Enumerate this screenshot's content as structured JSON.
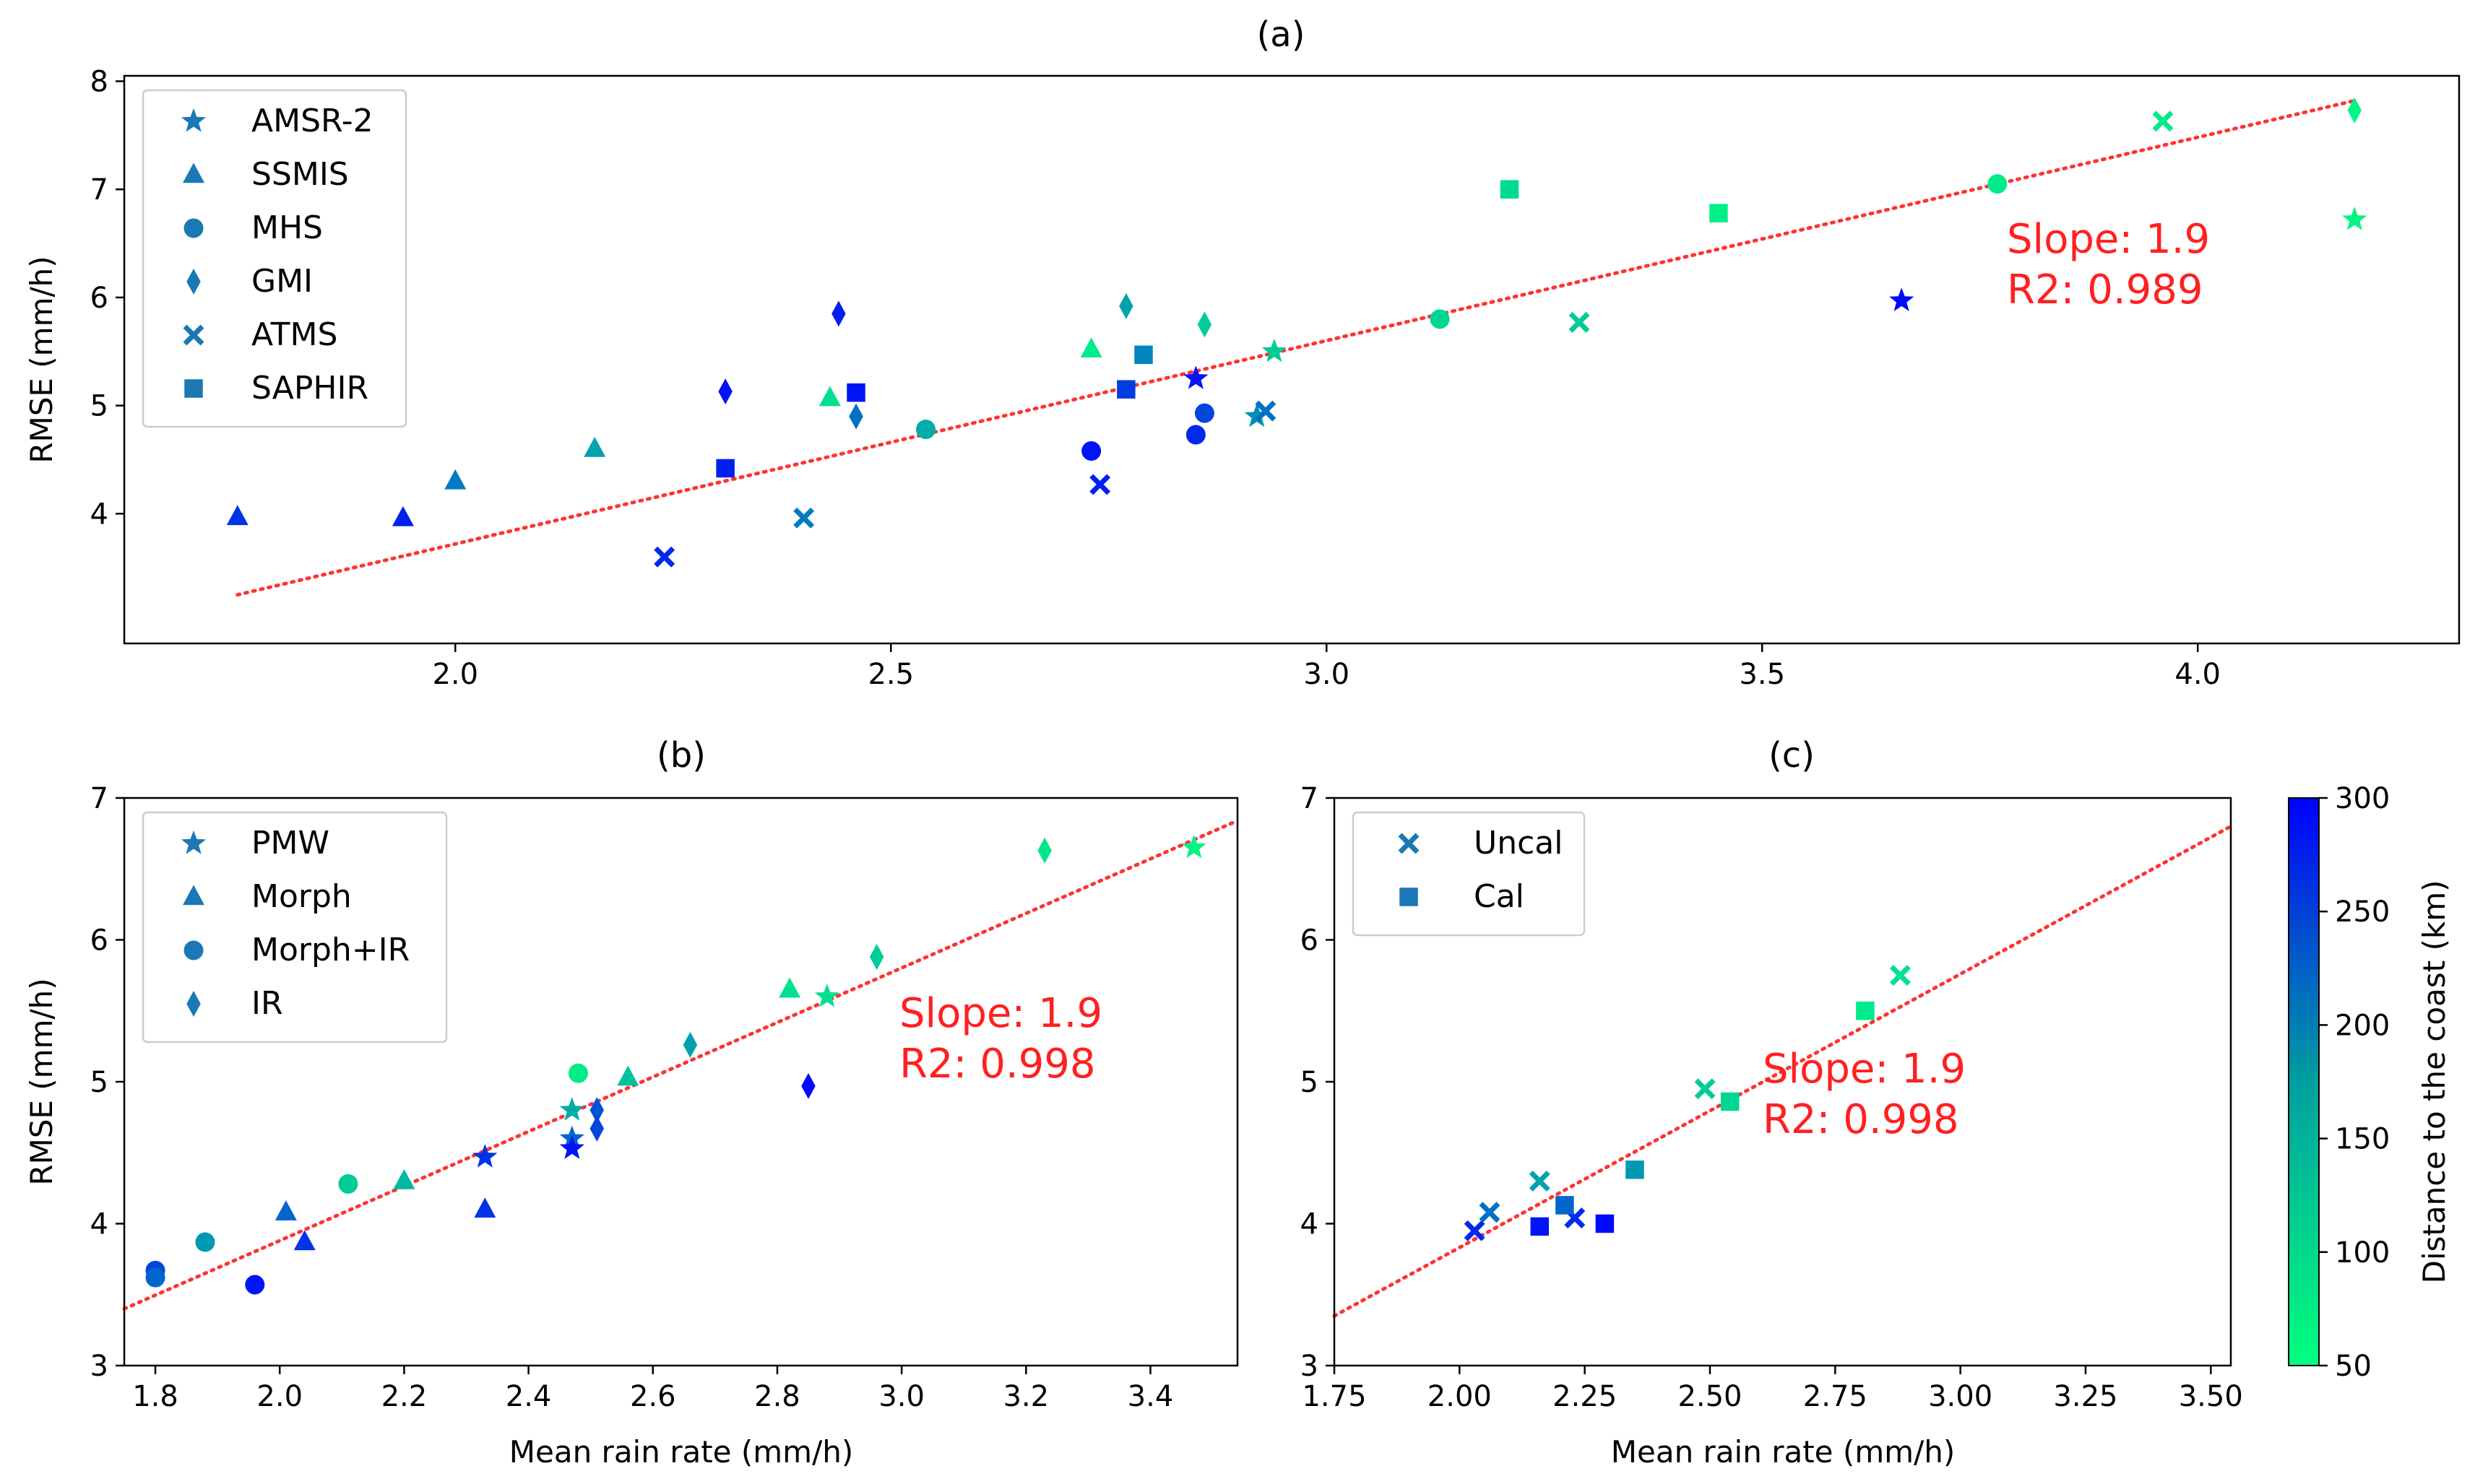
{
  "colors": {
    "fit_line": "#ff3333",
    "annotation": "#ff2020",
    "legend_marker": "#1a78b4",
    "cmap_low": "#00ff7f",
    "cmap_high": "#0000ff"
  },
  "colorbar": {
    "label": "Distance to the coast (km)",
    "min": 50,
    "max": 300,
    "ticks": [
      50,
      100,
      150,
      200,
      250,
      300
    ]
  },
  "chart_data": [
    {
      "id": "a",
      "type": "scatter",
      "title": "(a)",
      "xlabel": "",
      "ylabel": "RMSE (mm/h)",
      "xlim": [
        1.62,
        4.3
      ],
      "ylim": [
        2.8,
        8.05
      ],
      "xticks": [
        2.0,
        2.5,
        3.0,
        3.5,
        4.0
      ],
      "xtick_labels": [
        "2.0",
        "2.5",
        "3.0",
        "3.5",
        "4.0"
      ],
      "yticks": [
        4,
        5,
        6,
        7,
        8
      ],
      "ytick_labels": [
        "4",
        "5",
        "6",
        "7",
        "8"
      ],
      "fit": {
        "x0": 1.75,
        "x1": 4.18,
        "y0": 3.25,
        "y1": 7.82,
        "slope_text": "Slope: 1.9",
        "r2_text": "R2: 0.989",
        "text_x": 3.78,
        "text_y": 6.2
      },
      "legend": [
        "AMSR-2",
        "SSMIS",
        "MHS",
        "GMI",
        "ATMS",
        "SAPHIR"
      ],
      "legend_markers": [
        "star",
        "triangle",
        "circle",
        "diamond",
        "x",
        "square"
      ],
      "series": [
        {
          "name": "AMSR-2",
          "marker": "star",
          "points": [
            {
              "x": 2.85,
              "y": 5.25,
              "d": 280
            },
            {
              "x": 2.92,
              "y": 4.9,
              "d": 160
            },
            {
              "x": 2.94,
              "y": 5.5,
              "d": 100
            },
            {
              "x": 3.66,
              "y": 5.97,
              "d": 290
            },
            {
              "x": 4.18,
              "y": 6.72,
              "d": 60
            }
          ]
        },
        {
          "name": "SSMIS",
          "marker": "triangle",
          "points": [
            {
              "x": 1.75,
              "y": 3.97,
              "d": 250
            },
            {
              "x": 1.94,
              "y": 3.96,
              "d": 270
            },
            {
              "x": 2.0,
              "y": 4.3,
              "d": 180
            },
            {
              "x": 2.16,
              "y": 4.6,
              "d": 140
            },
            {
              "x": 2.43,
              "y": 5.07,
              "d": 80
            },
            {
              "x": 2.73,
              "y": 5.52,
              "d": 70
            }
          ]
        },
        {
          "name": "MHS",
          "marker": "circle",
          "points": [
            {
              "x": 2.54,
              "y": 4.78,
              "d": 130
            },
            {
              "x": 2.73,
              "y": 4.58,
              "d": 280
            },
            {
              "x": 2.85,
              "y": 4.73,
              "d": 260
            },
            {
              "x": 2.86,
              "y": 4.93,
              "d": 230
            },
            {
              "x": 3.13,
              "y": 5.8,
              "d": 90
            },
            {
              "x": 3.77,
              "y": 7.05,
              "d": 70
            }
          ]
        },
        {
          "name": "GMI",
          "marker": "diamond",
          "points": [
            {
              "x": 2.31,
              "y": 5.13,
              "d": 280
            },
            {
              "x": 2.44,
              "y": 5.85,
              "d": 270
            },
            {
              "x": 2.46,
              "y": 4.9,
              "d": 190
            },
            {
              "x": 2.77,
              "y": 5.92,
              "d": 140
            },
            {
              "x": 2.86,
              "y": 5.75,
              "d": 100
            },
            {
              "x": 4.18,
              "y": 7.73,
              "d": 60
            }
          ]
        },
        {
          "name": "ATMS",
          "marker": "x",
          "points": [
            {
              "x": 2.24,
              "y": 3.6,
              "d": 260
            },
            {
              "x": 2.4,
              "y": 3.96,
              "d": 180
            },
            {
              "x": 2.74,
              "y": 4.27,
              "d": 270
            },
            {
              "x": 2.93,
              "y": 4.95,
              "d": 190
            },
            {
              "x": 3.29,
              "y": 5.77,
              "d": 100
            },
            {
              "x": 3.96,
              "y": 7.63,
              "d": 70
            }
          ]
        },
        {
          "name": "SAPHIR",
          "marker": "square",
          "points": [
            {
              "x": 2.31,
              "y": 4.42,
              "d": 270
            },
            {
              "x": 2.46,
              "y": 5.12,
              "d": 280
            },
            {
              "x": 2.77,
              "y": 5.15,
              "d": 240
            },
            {
              "x": 2.79,
              "y": 5.47,
              "d": 170
            },
            {
              "x": 3.21,
              "y": 7.0,
              "d": 85
            },
            {
              "x": 3.45,
              "y": 6.78,
              "d": 65
            }
          ]
        }
      ]
    },
    {
      "id": "b",
      "type": "scatter",
      "title": "(b)",
      "xlabel": "Mean rain rate (mm/h)",
      "ylabel": "RMSE (mm/h)",
      "xlim": [
        1.75,
        3.54
      ],
      "ylim": [
        3.0,
        7.0
      ],
      "xticks": [
        1.8,
        2.0,
        2.2,
        2.4,
        2.6,
        2.8,
        3.0,
        3.2,
        3.4
      ],
      "xtick_labels": [
        "1.8",
        "2.0",
        "2.2",
        "2.4",
        "2.6",
        "2.8",
        "3.0",
        "3.2",
        "3.4"
      ],
      "yticks": [
        3,
        4,
        5,
        6,
        7
      ],
      "ytick_labels": [
        "3",
        "4",
        "5",
        "6",
        "7"
      ],
      "fit": {
        "x0": 1.75,
        "x1": 3.54,
        "y0": 3.4,
        "y1": 6.84,
        "slope_text": "Slope: 1.9",
        "r2_text": "R2: 0.998",
        "text_x": 3.0,
        "text_y": 5.55
      },
      "legend": [
        "PMW",
        "Morph",
        "Morph+IR",
        "IR"
      ],
      "legend_markers": [
        "star",
        "triangle",
        "circle",
        "diamond"
      ],
      "series": [
        {
          "name": "PMW",
          "marker": "star",
          "points": [
            {
              "x": 2.33,
              "y": 4.47,
              "d": 250
            },
            {
              "x": 2.47,
              "y": 4.8,
              "d": 130
            },
            {
              "x": 2.47,
              "y": 4.6,
              "d": 200
            },
            {
              "x": 2.47,
              "y": 4.53,
              "d": 280
            },
            {
              "x": 2.88,
              "y": 5.6,
              "d": 80
            },
            {
              "x": 3.47,
              "y": 6.65,
              "d": 60
            }
          ]
        },
        {
          "name": "Morph",
          "marker": "triangle",
          "points": [
            {
              "x": 2.01,
              "y": 4.08,
              "d": 200
            },
            {
              "x": 2.04,
              "y": 3.87,
              "d": 250
            },
            {
              "x": 2.2,
              "y": 4.3,
              "d": 120
            },
            {
              "x": 2.33,
              "y": 4.1,
              "d": 250
            },
            {
              "x": 2.56,
              "y": 5.03,
              "d": 110
            },
            {
              "x": 2.82,
              "y": 5.65,
              "d": 80
            }
          ]
        },
        {
          "name": "Morph+IR",
          "marker": "circle",
          "points": [
            {
              "x": 1.8,
              "y": 3.67,
              "d": 230
            },
            {
              "x": 1.8,
              "y": 3.62,
              "d": 200
            },
            {
              "x": 1.88,
              "y": 3.87,
              "d": 150
            },
            {
              "x": 1.96,
              "y": 3.57,
              "d": 280
            },
            {
              "x": 2.11,
              "y": 4.28,
              "d": 100
            },
            {
              "x": 2.48,
              "y": 5.06,
              "d": 70
            }
          ]
        },
        {
          "name": "IR",
          "marker": "diamond",
          "points": [
            {
              "x": 2.51,
              "y": 4.8,
              "d": 220
            },
            {
              "x": 2.51,
              "y": 4.67,
              "d": 230
            },
            {
              "x": 2.66,
              "y": 5.26,
              "d": 140
            },
            {
              "x": 2.85,
              "y": 4.97,
              "d": 290
            },
            {
              "x": 2.96,
              "y": 5.88,
              "d": 100
            },
            {
              "x": 3.23,
              "y": 6.63,
              "d": 75
            }
          ]
        }
      ]
    },
    {
      "id": "c",
      "type": "scatter",
      "title": "(c)",
      "xlabel": "Mean rain rate (mm/h)",
      "ylabel": "",
      "xlim": [
        1.75,
        3.54
      ],
      "ylim": [
        3.0,
        7.0
      ],
      "xticks": [
        1.75,
        2.0,
        2.25,
        2.5,
        2.75,
        3.0,
        3.25,
        3.5
      ],
      "xtick_labels": [
        "1.75",
        "2.00",
        "2.25",
        "2.50",
        "2.75",
        "3.00",
        "3.25",
        "3.50"
      ],
      "yticks": [
        3,
        4,
        5,
        6,
        7
      ],
      "ytick_labels": [
        "3",
        "4",
        "5",
        "6",
        "7"
      ],
      "fit": {
        "x0": 1.75,
        "x1": 3.54,
        "y0": 3.35,
        "y1": 6.8,
        "slope_text": "Slope: 1.9",
        "r2_text": "R2: 0.998",
        "text_x": 2.6,
        "text_y": 4.95
      },
      "legend": [
        "Uncal",
        "Cal"
      ],
      "legend_markers": [
        "x",
        "square"
      ],
      "series": [
        {
          "name": "Uncal",
          "marker": "x",
          "points": [
            {
              "x": 2.03,
              "y": 3.95,
              "d": 260
            },
            {
              "x": 2.06,
              "y": 4.08,
              "d": 190
            },
            {
              "x": 2.16,
              "y": 4.3,
              "d": 140
            },
            {
              "x": 2.23,
              "y": 4.04,
              "d": 260
            },
            {
              "x": 2.49,
              "y": 4.95,
              "d": 100
            },
            {
              "x": 2.88,
              "y": 5.75,
              "d": 80
            }
          ]
        },
        {
          "name": "Cal",
          "marker": "square",
          "points": [
            {
              "x": 2.16,
              "y": 3.98,
              "d": 280
            },
            {
              "x": 2.21,
              "y": 4.13,
              "d": 200
            },
            {
              "x": 2.29,
              "y": 4.0,
              "d": 290
            },
            {
              "x": 2.35,
              "y": 4.38,
              "d": 150
            },
            {
              "x": 2.54,
              "y": 4.86,
              "d": 90
            },
            {
              "x": 2.81,
              "y": 5.5,
              "d": 70
            }
          ]
        }
      ]
    }
  ]
}
